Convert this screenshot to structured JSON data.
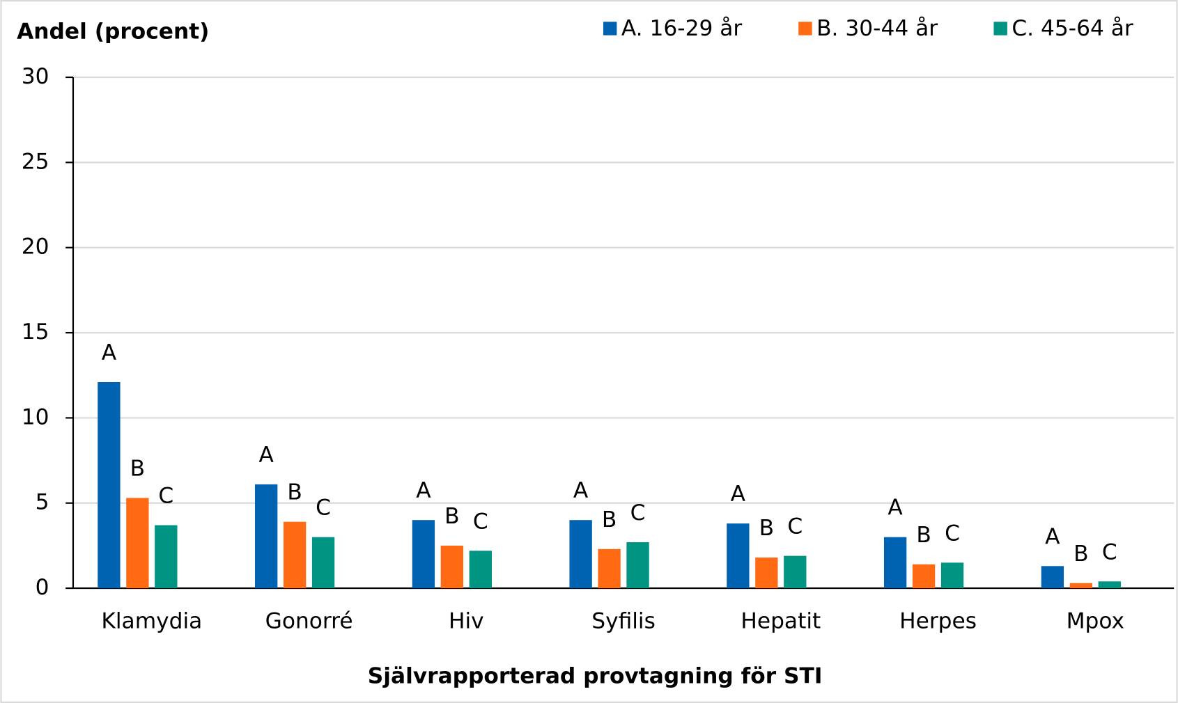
{
  "chart_data": {
    "type": "bar",
    "y_axis_title": "Andel (procent)",
    "x_axis_title": "Självrapporterad provtagning för STI",
    "categories": [
      "Klamydia",
      "Gonorré",
      "Hiv",
      "Syfilis",
      "Hepatit",
      "Herpes",
      "Mpox"
    ],
    "series": [
      {
        "name": "A. 16-29 år",
        "bar_label": "A",
        "color": "#0063b1",
        "values": [
          12.1,
          6.1,
          4.0,
          4.0,
          3.8,
          3.0,
          1.3
        ]
      },
      {
        "name": "B. 30-44 år",
        "bar_label": "B",
        "color": "#ff6a13",
        "values": [
          5.3,
          3.9,
          2.5,
          2.3,
          1.8,
          1.4,
          0.3
        ]
      },
      {
        "name": "C. 45-64 år",
        "bar_label": "C",
        "color": "#009482",
        "values": [
          3.7,
          3.0,
          2.2,
          2.7,
          1.9,
          1.5,
          0.4
        ]
      }
    ],
    "ylim": [
      0,
      30
    ],
    "yticks": [
      0,
      5,
      10,
      15,
      20,
      25,
      30
    ],
    "grid": true,
    "legend": "top"
  }
}
